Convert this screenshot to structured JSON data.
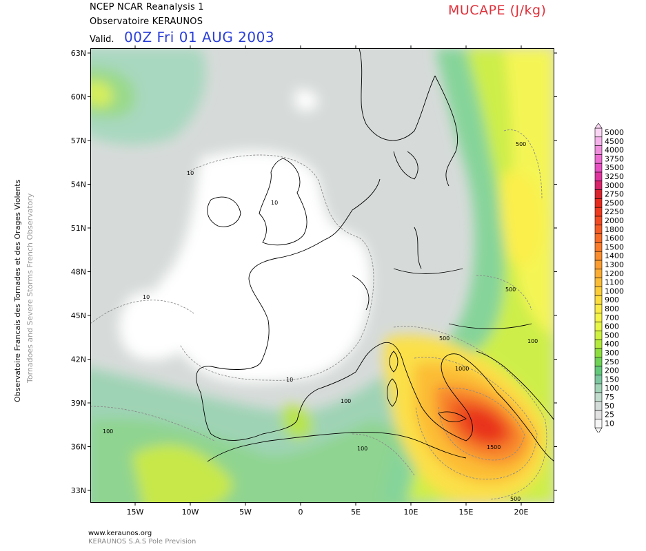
{
  "header": {
    "line1": "NCEP NCAR Reanalysis 1",
    "line2": "Observatoire KERAUNOS",
    "valid_label": "Valid.",
    "valid_date": "00Z Fri 01 AUG 2003",
    "parameter": "MUCAPE (J/kg)"
  },
  "side_text": {
    "line1": "Observatoire Francais des Tornades et des Orages Violents",
    "line2": "Tornadoes and Severe Storms French Observatory"
  },
  "footer": {
    "url": "www.keraunos.org",
    "company": "KERAUNOS S.A.S Pole Prevision"
  },
  "map": {
    "lat_labels": [
      "63N",
      "60N",
      "57N",
      "54N",
      "51N",
      "48N",
      "45N",
      "42N",
      "39N",
      "36N",
      "33N"
    ],
    "lon_labels": [
      "15W",
      "10W",
      "5W",
      "0",
      "5E",
      "10E",
      "15E",
      "20E"
    ],
    "contour_labels": [
      "10",
      "10",
      "10",
      "10",
      "100",
      "100",
      "100",
      "100",
      "500",
      "500",
      "500",
      "1000",
      "1500",
      "500"
    ],
    "colors": {
      "land_outline": "#000000",
      "contour_line": "#8a8a8a"
    }
  },
  "legend": {
    "levels": [
      "5000",
      "4500",
      "4000",
      "3750",
      "3500",
      "3250",
      "3000",
      "2750",
      "2500",
      "2250",
      "2000",
      "1800",
      "1600",
      "1500",
      "1400",
      "1300",
      "1200",
      "1100",
      "1000",
      "900",
      "800",
      "700",
      "600",
      "500",
      "400",
      "300",
      "250",
      "200",
      "150",
      "100",
      "75",
      "50",
      "25",
      "10"
    ],
    "colors": [
      "#fbd6f4",
      "#f7b4ec",
      "#f18ede",
      "#ee6cd2",
      "#e84fc3",
      "#e0359f",
      "#d9236a",
      "#d9232d",
      "#e62a1c",
      "#ef3a1f",
      "#f24a22",
      "#f55c25",
      "#f86c27",
      "#fb7c2a",
      "#fb8d2e",
      "#fb9d30",
      "#fcad33",
      "#fcbd36",
      "#fdcd38",
      "#fddd3c",
      "#fbeb45",
      "#f5f448",
      "#e8f745",
      "#cff240",
      "#b3ea3c",
      "#8fde3f",
      "#6fd356",
      "#63c97a",
      "#7cc7a0",
      "#a2d4b8",
      "#c1dccd",
      "#d3dcd8",
      "#e2e2e2",
      "#f6f6f6"
    ]
  }
}
